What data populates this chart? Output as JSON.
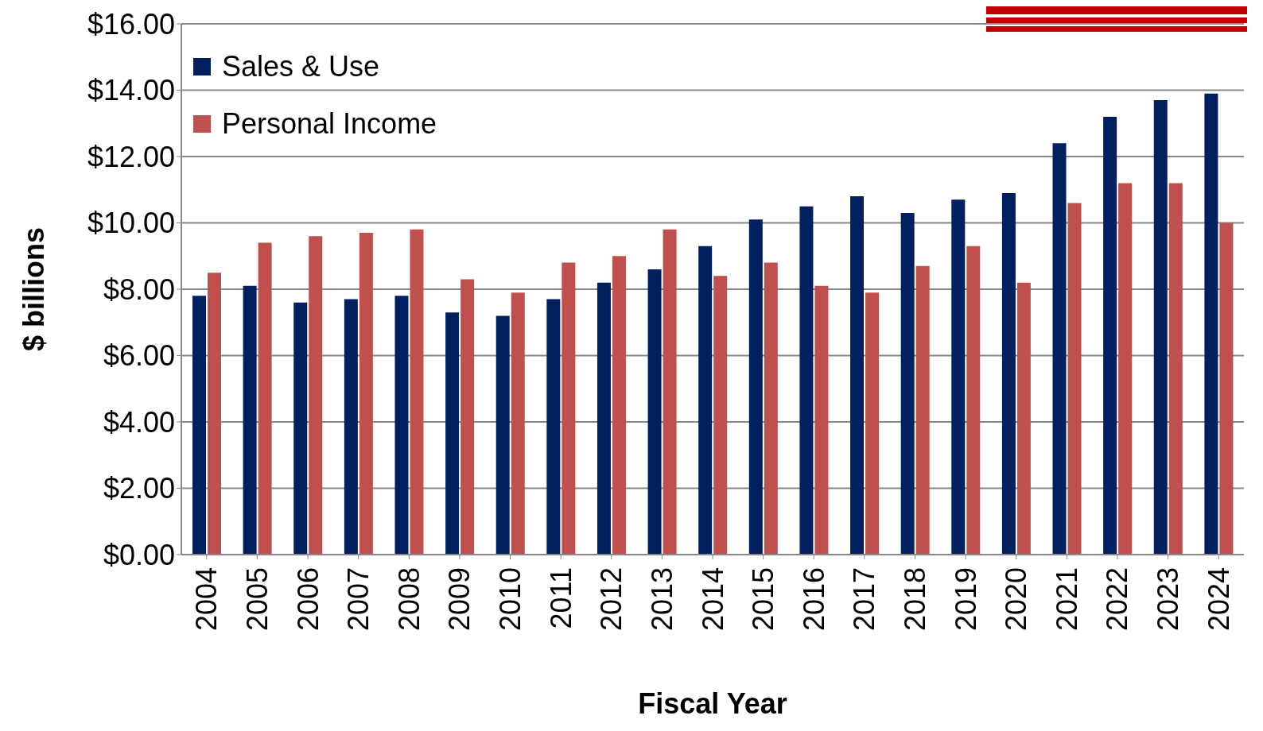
{
  "chart_data": {
    "type": "bar",
    "xlabel": "Fiscal Year",
    "ylabel": "$ billions",
    "categories": [
      "2004",
      "2005",
      "2006",
      "2007",
      "2008",
      "2009",
      "2010",
      "2011",
      "2012",
      "2013",
      "2014",
      "2015",
      "2016",
      "2017",
      "2018",
      "2019",
      "2020",
      "2021",
      "2022",
      "2023",
      "2024"
    ],
    "series": [
      {
        "name": "Sales & Use",
        "color": "#002060",
        "values": [
          7.8,
          8.1,
          7.6,
          7.7,
          7.8,
          7.3,
          7.2,
          7.7,
          8.2,
          8.6,
          9.3,
          10.1,
          10.5,
          10.8,
          10.3,
          10.7,
          10.9,
          12.4,
          13.2,
          13.7,
          13.9
        ]
      },
      {
        "name": "Personal Income",
        "color": "#c0504d",
        "values": [
          8.5,
          9.4,
          9.6,
          9.7,
          9.8,
          8.3,
          7.9,
          8.8,
          9.0,
          9.8,
          8.4,
          8.8,
          8.1,
          7.9,
          8.7,
          9.3,
          8.2,
          10.6,
          11.2,
          11.2,
          10.0
        ]
      }
    ],
    "ylim": [
      0,
      16
    ],
    "yticks": [
      {
        "value": 0,
        "label": "$0.00"
      },
      {
        "value": 2,
        "label": "$2.00"
      },
      {
        "value": 4,
        "label": "$4.00"
      },
      {
        "value": 6,
        "label": "$6.00"
      },
      {
        "value": 8,
        "label": "$8.00"
      },
      {
        "value": 10,
        "label": "$10.00"
      },
      {
        "value": 12,
        "label": "$12.00"
      },
      {
        "value": 14,
        "label": "$14.00"
      },
      {
        "value": 16,
        "label": "$16.00"
      }
    ],
    "grid": "y",
    "legend": "top left"
  }
}
